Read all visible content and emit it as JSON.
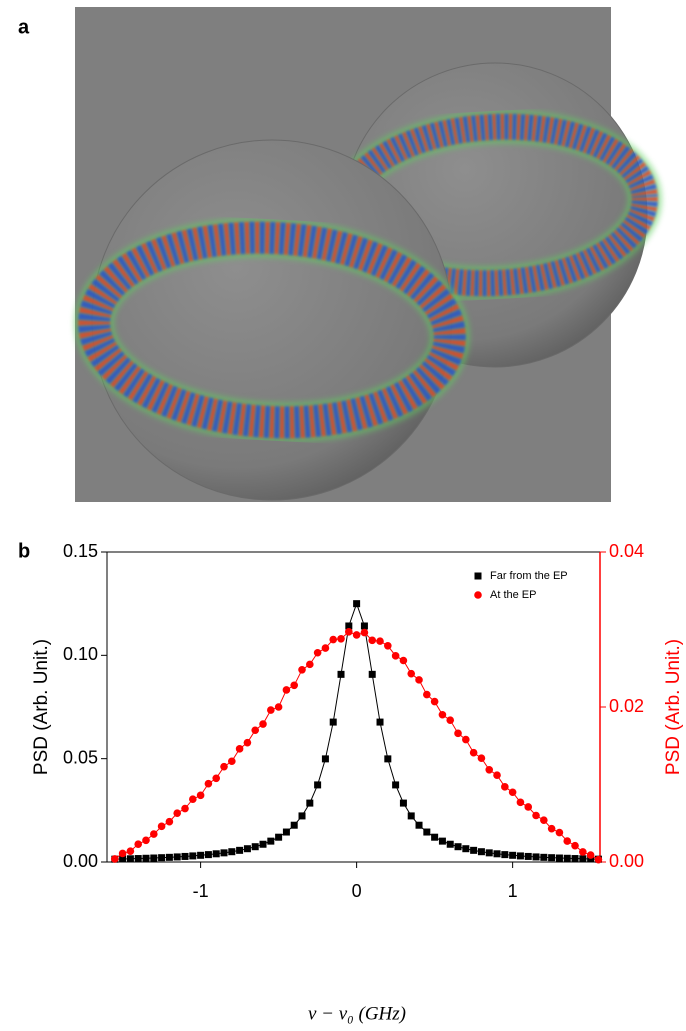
{
  "panel_labels": [
    "a",
    "b"
  ],
  "chart_data": {
    "type": "scatter",
    "xlabel": "ν − ν₀ (GHz)",
    "ylabel": "PSD (Arb. Unit.)",
    "y2label": "PSD (Arb. Unit.)",
    "xlim": [
      -1.6,
      1.56
    ],
    "xticks": [
      -1,
      0,
      1
    ],
    "ylim": [
      0,
      0.15
    ],
    "yticks": [
      {
        "value": 0,
        "label": "0.00"
      },
      {
        "value": 0.05,
        "label": "0.05"
      },
      {
        "value": 0.1,
        "label": "0.10"
      },
      {
        "value": 0.15,
        "label": "0.15"
      }
    ],
    "y2lim": [
      0,
      0.04
    ],
    "y2ticks": [
      {
        "value": 0,
        "label": "0.00"
      },
      {
        "value": 0.02,
        "label": "0.02"
      },
      {
        "value": 0.04,
        "label": "0.04"
      }
    ],
    "y2color": "#ff0000",
    "legend": "upper right",
    "x": [
      -1.55,
      -1.5,
      -1.45,
      -1.4,
      -1.35,
      -1.3,
      -1.25,
      -1.2,
      -1.15,
      -1.1,
      -1.05,
      -1,
      -0.95,
      -0.9,
      -0.85,
      -0.8,
      -0.75,
      -0.7,
      -0.65,
      -0.6,
      -0.55,
      -0.5,
      -0.45,
      -0.4,
      -0.35,
      -0.3,
      -0.25,
      -0.2,
      -0.15,
      -0.1,
      -0.05,
      0,
      0.05,
      0.1,
      0.15,
      0.2,
      0.25,
      0.3,
      0.35,
      0.4,
      0.45,
      0.5,
      0.55,
      0.6,
      0.65,
      0.7,
      0.75,
      0.8,
      0.85,
      0.9,
      0.95,
      1,
      1.05,
      1.1,
      1.15,
      1.2,
      1.25,
      1.3,
      1.35,
      1.4,
      1.45,
      1.5,
      1.55
    ],
    "series": [
      {
        "name": "Far from the EP",
        "color": "#000000",
        "marker": "square",
        "line": true,
        "values": [
          0.00137,
          0.00146,
          0.00156,
          0.00167,
          0.0018,
          0.00193,
          0.00209,
          0.00226,
          0.00246,
          0.00269,
          0.00294,
          0.00324,
          0.00357,
          0.00397,
          0.00443,
          0.00498,
          0.00564,
          0.00643,
          0.0074,
          0.00859,
          0.0101,
          0.012,
          0.0145,
          0.0178,
          0.0223,
          0.0285,
          0.0373,
          0.0499,
          0.0677,
          0.0908,
          0.1142,
          0.125,
          0.1142,
          0.0908,
          0.0677,
          0.0499,
          0.0373,
          0.0285,
          0.0223,
          0.0178,
          0.0145,
          0.012,
          0.0101,
          0.00859,
          0.0074,
          0.00643,
          0.00564,
          0.00498,
          0.00443,
          0.00397,
          0.00357,
          0.00324,
          0.00294,
          0.00269,
          0.00246,
          0.00226,
          0.00209,
          0.00193,
          0.0018,
          0.00167,
          0.00156,
          0.00146,
          0.00137
        ]
      },
      {
        "name": "At the EP",
        "color": "#ff0000",
        "marker": "circle",
        "line": true,
        "axis": "y2",
        "values": [
          0.0004,
          0.0011,
          0.0014,
          0.0023,
          0.0028,
          0.0036,
          0.0046,
          0.0052,
          0.0063,
          0.0069,
          0.0081,
          0.0086,
          0.0101,
          0.0108,
          0.0123,
          0.013,
          0.0146,
          0.0154,
          0.017,
          0.0178,
          0.0196,
          0.02,
          0.0222,
          0.0228,
          0.0248,
          0.0255,
          0.027,
          0.0276,
          0.0287,
          0.0288,
          0.0297,
          0.0293,
          0.0296,
          0.0286,
          0.0285,
          0.0279,
          0.0266,
          0.026,
          0.0243,
          0.0235,
          0.0216,
          0.0207,
          0.019,
          0.0183,
          0.0166,
          0.0158,
          0.0141,
          0.0134,
          0.0119,
          0.0112,
          0.0097,
          0.009,
          0.0077,
          0.0071,
          0.006,
          0.0054,
          0.0043,
          0.0038,
          0.0027,
          0.0021,
          0.0013,
          0.0009,
          0.0003
        ]
      }
    ]
  }
}
